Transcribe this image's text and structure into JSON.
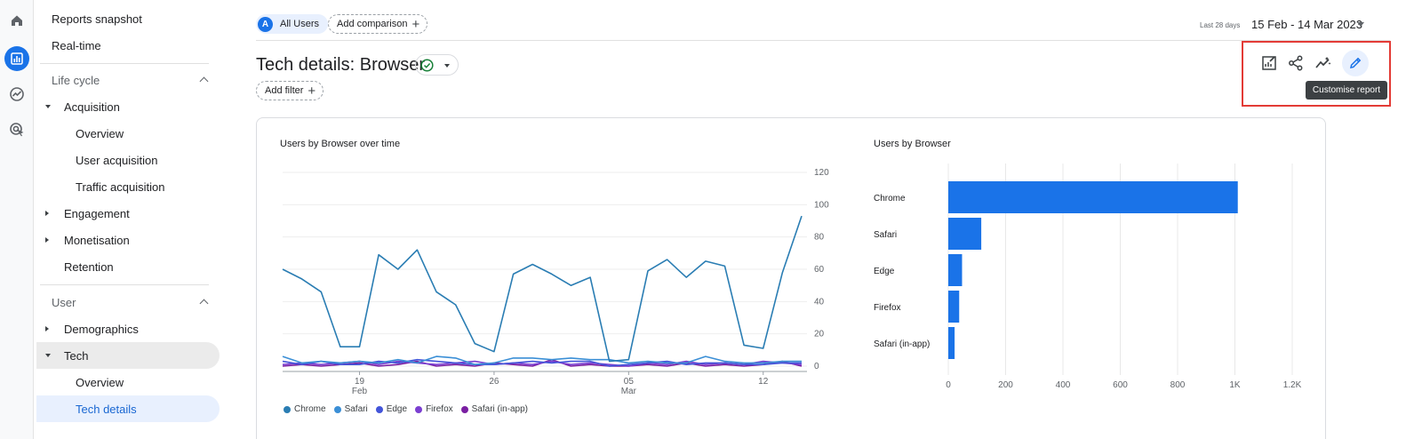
{
  "nav": {
    "reports_snapshot": "Reports snapshot",
    "realtime": "Real-time",
    "lifecycle": "Life cycle",
    "acquisition": "Acquisition",
    "acq_overview": "Overview",
    "user_acquisition": "User acquisition",
    "traffic_acquisition": "Traffic acquisition",
    "engagement": "Engagement",
    "monetisation": "Monetisation",
    "retention": "Retention",
    "user": "User",
    "demographics": "Demographics",
    "tech": "Tech",
    "tech_overview": "Overview",
    "tech_details": "Tech details"
  },
  "header": {
    "segment_badge": "A",
    "segment": "All Users",
    "add_comparison": "Add comparison",
    "date_prefix": "Last 28 days",
    "date_range": "15 Feb - 14 Mar 2023",
    "title": "Tech details: Browser",
    "add_filter": "Add filter",
    "tooltip": "Customise report"
  },
  "icons": {
    "rail": [
      "home-icon",
      "reports-icon",
      "explore-icon",
      "advertising-icon"
    ],
    "toolbar": [
      "edit-comparisons-icon",
      "share-icon",
      "insights-icon",
      "pencil-icon"
    ]
  },
  "colors": {
    "accent": "#1a73e8",
    "chrome": "#2a7db3",
    "safari": "#3b8fd6",
    "edge": "#4355d9",
    "firefox": "#7b3fd1",
    "safari_inapp": "#7a1fa2",
    "bar": "#1a73e8"
  },
  "chart_data": [
    {
      "type": "line",
      "title": "Users by Browser over time",
      "x": [
        "15 Feb",
        "16 Feb",
        "17 Feb",
        "18 Feb",
        "19 Feb",
        "20 Feb",
        "21 Feb",
        "22 Feb",
        "23 Feb",
        "24 Feb",
        "25 Feb",
        "26 Feb",
        "27 Feb",
        "28 Feb",
        "01 Mar",
        "02 Mar",
        "03 Mar",
        "04 Mar",
        "05 Mar",
        "06 Mar",
        "07 Mar",
        "08 Mar",
        "09 Mar",
        "10 Mar",
        "11 Mar",
        "12 Mar",
        "13 Mar",
        "14 Mar"
      ],
      "x_ticks": [
        {
          "index": 4,
          "day": "19",
          "month": "Feb"
        },
        {
          "index": 11,
          "day": "26",
          "month": ""
        },
        {
          "index": 18,
          "day": "05",
          "month": "Mar"
        },
        {
          "index": 25,
          "day": "12",
          "month": ""
        }
      ],
      "y_ticks": [
        0,
        20,
        40,
        60,
        80,
        100,
        120
      ],
      "ylim": [
        0,
        120
      ],
      "series": [
        {
          "name": "Chrome",
          "color": "#2a7db3",
          "values": [
            60,
            54,
            46,
            12,
            12,
            69,
            60,
            72,
            46,
            38,
            14,
            9,
            57,
            63,
            57,
            50,
            55,
            3,
            4,
            59,
            66,
            55,
            65,
            62,
            13,
            11,
            58,
            93
          ]
        },
        {
          "name": "Safari",
          "color": "#3b8fd6",
          "values": [
            6,
            2,
            3,
            2,
            3,
            2,
            4,
            2,
            6,
            5,
            1,
            2,
            5,
            5,
            4,
            5,
            4,
            4,
            2,
            3,
            2,
            2,
            6,
            3,
            2,
            2,
            3,
            3
          ]
        },
        {
          "name": "Edge",
          "color": "#4355d9",
          "values": [
            3,
            1,
            3,
            1,
            1,
            3,
            2,
            4,
            3,
            2,
            1,
            1,
            2,
            3,
            2,
            3,
            3,
            0,
            1,
            2,
            3,
            1,
            2,
            2,
            1,
            1,
            2,
            2
          ]
        },
        {
          "name": "Firefox",
          "color": "#7b3fd1",
          "values": [
            1,
            2,
            1,
            2,
            3,
            1,
            3,
            2,
            1,
            2,
            3,
            1,
            2,
            1,
            3,
            1,
            2,
            1,
            0,
            2,
            1,
            3,
            1,
            2,
            1,
            3,
            2,
            1
          ]
        },
        {
          "name": "Safari (in-app)",
          "color": "#7a1fa2",
          "values": [
            0,
            1,
            0,
            1,
            2,
            0,
            1,
            3,
            0,
            1,
            0,
            2,
            1,
            0,
            4,
            0,
            1,
            0,
            0,
            1,
            0,
            2,
            0,
            1,
            0,
            1,
            3,
            0
          ]
        }
      ]
    },
    {
      "type": "bar",
      "orientation": "horizontal",
      "title": "Users by Browser",
      "categories": [
        "Chrome",
        "Safari",
        "Edge",
        "Firefox",
        "Safari (in-app)"
      ],
      "values": [
        1010,
        115,
        48,
        38,
        22
      ],
      "x_ticks": [
        0,
        200,
        400,
        600,
        800,
        1000,
        1200
      ],
      "x_tick_labels": [
        "0",
        "200",
        "400",
        "600",
        "800",
        "1K",
        "1.2K"
      ],
      "xlim": [
        0,
        1200
      ]
    }
  ]
}
